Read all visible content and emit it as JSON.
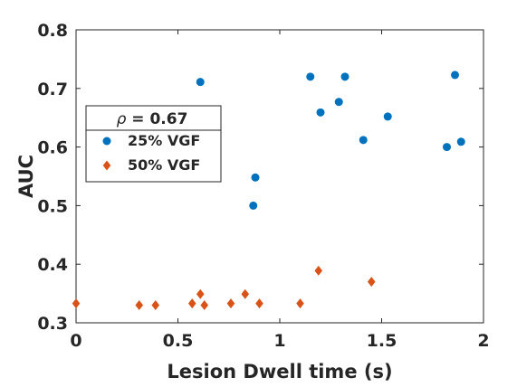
{
  "chart_data": {
    "type": "scatter",
    "title": "",
    "xlabel": "Lesion Dwell time (s)",
    "ylabel": "AUC",
    "xlim": [
      0,
      2
    ],
    "ylim": [
      0.3,
      0.8
    ],
    "xticks": [
      0,
      0.5,
      1,
      1.5,
      2
    ],
    "xtick_labels": [
      "0",
      "0.5",
      "1",
      "1.5",
      "2"
    ],
    "yticks": [
      0.3,
      0.4,
      0.5,
      0.6,
      0.7,
      0.8
    ],
    "ytick_labels": [
      "0.3",
      "0.4",
      "0.5",
      "0.6",
      "0.7",
      "0.8"
    ],
    "grid": false,
    "legend_position": "left",
    "annotation": {
      "symbol": "ρ",
      "text": " = 0.67"
    },
    "series": [
      {
        "name": "25% VGF",
        "marker": "circle",
        "color": "#0072BD",
        "points": [
          [
            0.61,
            0.711
          ],
          [
            0.88,
            0.548
          ],
          [
            0.87,
            0.5
          ],
          [
            1.15,
            0.72
          ],
          [
            1.2,
            0.659
          ],
          [
            1.29,
            0.677
          ],
          [
            1.32,
            0.72
          ],
          [
            1.41,
            0.612
          ],
          [
            1.53,
            0.652
          ],
          [
            1.82,
            0.6
          ],
          [
            1.86,
            0.723
          ],
          [
            1.89,
            0.609
          ]
        ]
      },
      {
        "name": "50% VGF",
        "marker": "diamond",
        "color": "#D95319",
        "points": [
          [
            0.0,
            0.333
          ],
          [
            0.31,
            0.33
          ],
          [
            0.39,
            0.33
          ],
          [
            0.57,
            0.333
          ],
          [
            0.61,
            0.349
          ],
          [
            0.63,
            0.33
          ],
          [
            0.76,
            0.333
          ],
          [
            0.83,
            0.349
          ],
          [
            0.9,
            0.333
          ],
          [
            1.1,
            0.333
          ],
          [
            1.19,
            0.389
          ],
          [
            1.45,
            0.37
          ]
        ]
      }
    ]
  }
}
